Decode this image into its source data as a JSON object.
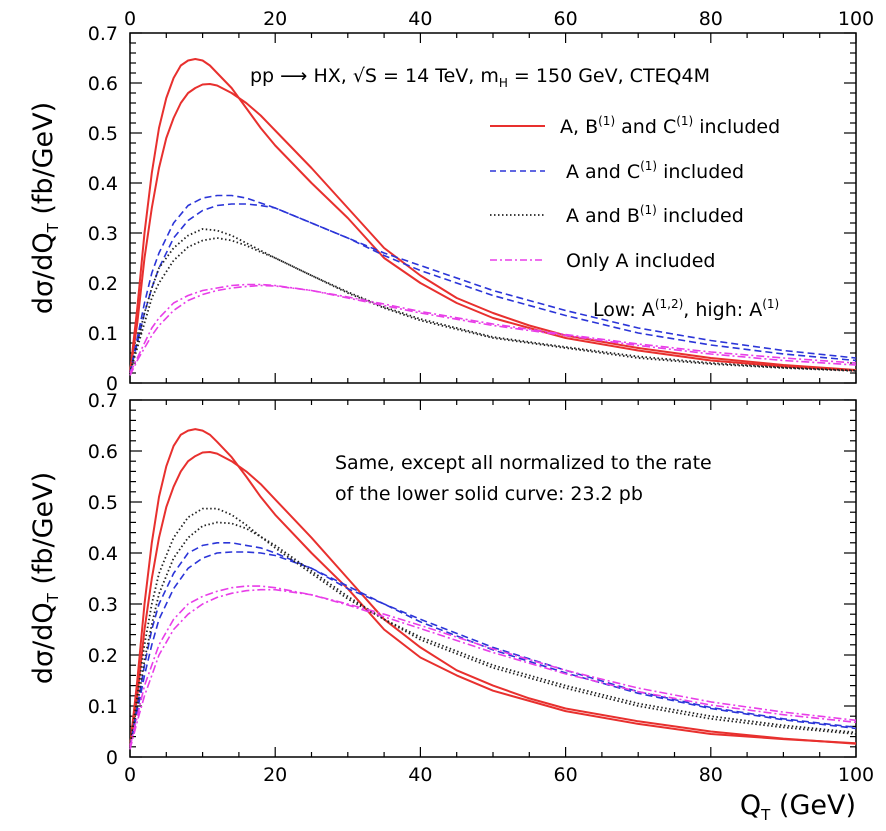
{
  "chart_data": [
    {
      "type": "line",
      "xlim": [
        0,
        100
      ],
      "ylim": [
        0,
        0.7
      ],
      "x_ticks": [
        "0",
        "20",
        "40",
        "60",
        "80",
        "100"
      ],
      "y_ticks": [
        "0",
        "0.1",
        "0.2",
        "0.3",
        "0.4",
        "0.5",
        "0.6",
        "0.7"
      ],
      "ylabel": "dσ/dQ_T (fb/GeV)",
      "title": "pp → HX, √S = 14 TeV, m_H = 150 GeV, CTEQ4M",
      "note": "Low: A^(1,2), high: A^(1)",
      "legend": [
        {
          "text": "A, B(1) and C(1) included",
          "style": "solid",
          "color": "#e8302e"
        },
        {
          "text": "A and C(1) included",
          "style": "dashed",
          "color": "#2b35d8"
        },
        {
          "text": "A and B(1) included",
          "style": "dotted",
          "color": "#222222"
        },
        {
          "text": "Only A included",
          "style": "dashdot",
          "color": "#e83ee8"
        }
      ],
      "series": [
        {
          "name": "A, B(1) and C(1) included (high)",
          "style": "solid",
          "color": "#e8302e",
          "x": [
            0,
            1,
            2,
            3,
            4,
            5,
            6,
            7,
            8,
            9,
            10,
            11,
            12,
            14,
            16,
            18,
            20,
            25,
            30,
            35,
            40,
            45,
            50,
            55,
            60,
            70,
            80,
            90,
            100
          ],
          "y": [
            0.02,
            0.15,
            0.3,
            0.42,
            0.51,
            0.57,
            0.61,
            0.635,
            0.645,
            0.648,
            0.645,
            0.635,
            0.62,
            0.59,
            0.55,
            0.51,
            0.475,
            0.4,
            0.33,
            0.25,
            0.2,
            0.16,
            0.13,
            0.11,
            0.09,
            0.065,
            0.045,
            0.033,
            0.025
          ]
        },
        {
          "name": "A, B(1) and C(1) included (low)",
          "style": "solid",
          "color": "#e8302e",
          "x": [
            0,
            1,
            2,
            3,
            4,
            5,
            6,
            7,
            8,
            9,
            10,
            11,
            12,
            14,
            16,
            18,
            20,
            25,
            30,
            35,
            40,
            45,
            50,
            55,
            60,
            70,
            80,
            90,
            100
          ],
          "y": [
            0.02,
            0.12,
            0.25,
            0.35,
            0.43,
            0.49,
            0.53,
            0.56,
            0.58,
            0.59,
            0.597,
            0.598,
            0.595,
            0.58,
            0.56,
            0.535,
            0.505,
            0.43,
            0.35,
            0.27,
            0.215,
            0.17,
            0.14,
            0.115,
            0.095,
            0.07,
            0.05,
            0.036,
            0.026
          ]
        },
        {
          "name": "A and C(1) included (high)",
          "style": "dashed",
          "color": "#2b35d8",
          "x": [
            0,
            1,
            2,
            3,
            4,
            6,
            8,
            10,
            12,
            14,
            16,
            18,
            20,
            25,
            30,
            35,
            40,
            50,
            60,
            70,
            80,
            90,
            100
          ],
          "y": [
            0.02,
            0.09,
            0.16,
            0.22,
            0.26,
            0.32,
            0.355,
            0.37,
            0.375,
            0.375,
            0.37,
            0.36,
            0.35,
            0.32,
            0.29,
            0.26,
            0.235,
            0.185,
            0.145,
            0.11,
            0.085,
            0.065,
            0.05
          ]
        },
        {
          "name": "A and C(1) included (low)",
          "style": "dashed",
          "color": "#2b35d8",
          "x": [
            0,
            1,
            2,
            3,
            4,
            6,
            8,
            10,
            12,
            14,
            16,
            18,
            20,
            25,
            30,
            35,
            40,
            50,
            60,
            70,
            80,
            90,
            100
          ],
          "y": [
            0.02,
            0.08,
            0.14,
            0.19,
            0.23,
            0.29,
            0.325,
            0.345,
            0.355,
            0.358,
            0.358,
            0.355,
            0.35,
            0.32,
            0.29,
            0.255,
            0.225,
            0.175,
            0.135,
            0.1,
            0.076,
            0.058,
            0.045
          ]
        },
        {
          "name": "A and B(1) included (high)",
          "style": "dotted",
          "color": "#222222",
          "x": [
            0,
            1,
            2,
            3,
            4,
            6,
            8,
            10,
            12,
            14,
            16,
            18,
            20,
            25,
            30,
            35,
            40,
            50,
            60,
            70,
            80,
            90,
            100
          ],
          "y": [
            0.02,
            0.08,
            0.14,
            0.19,
            0.23,
            0.27,
            0.295,
            0.308,
            0.305,
            0.295,
            0.28,
            0.265,
            0.25,
            0.215,
            0.18,
            0.15,
            0.125,
            0.09,
            0.07,
            0.05,
            0.038,
            0.03,
            0.024
          ]
        },
        {
          "name": "A and B(1) included (low)",
          "style": "dotted",
          "color": "#222222",
          "x": [
            0,
            1,
            2,
            3,
            4,
            6,
            8,
            10,
            12,
            14,
            16,
            18,
            20,
            25,
            30,
            35,
            40,
            50,
            60,
            70,
            80,
            90,
            100
          ],
          "y": [
            0.02,
            0.07,
            0.12,
            0.17,
            0.2,
            0.245,
            0.272,
            0.285,
            0.29,
            0.285,
            0.275,
            0.262,
            0.25,
            0.215,
            0.182,
            0.152,
            0.128,
            0.092,
            0.072,
            0.053,
            0.04,
            0.031,
            0.025
          ]
        },
        {
          "name": "Only A included (high)",
          "style": "dashdot",
          "color": "#e83ee8",
          "x": [
            0,
            1,
            2,
            3,
            4,
            6,
            8,
            10,
            12,
            14,
            16,
            18,
            20,
            25,
            30,
            35,
            40,
            50,
            60,
            70,
            80,
            90,
            100
          ],
          "y": [
            0.02,
            0.05,
            0.08,
            0.11,
            0.13,
            0.16,
            0.175,
            0.185,
            0.19,
            0.195,
            0.197,
            0.197,
            0.195,
            0.185,
            0.17,
            0.155,
            0.14,
            0.115,
            0.095,
            0.075,
            0.058,
            0.045,
            0.036
          ]
        },
        {
          "name": "Only A included (low)",
          "style": "dashdot",
          "color": "#e83ee8",
          "x": [
            0,
            1,
            2,
            3,
            4,
            6,
            8,
            10,
            12,
            14,
            16,
            18,
            20,
            25,
            30,
            35,
            40,
            50,
            60,
            70,
            80,
            90,
            100
          ],
          "y": [
            0.015,
            0.045,
            0.07,
            0.095,
            0.115,
            0.145,
            0.165,
            0.177,
            0.185,
            0.19,
            0.193,
            0.195,
            0.194,
            0.185,
            0.172,
            0.158,
            0.143,
            0.118,
            0.097,
            0.078,
            0.062,
            0.05,
            0.04
          ]
        }
      ]
    },
    {
      "type": "line",
      "xlim": [
        0,
        100
      ],
      "ylim": [
        0,
        0.7
      ],
      "x_ticks": [
        "0",
        "20",
        "40",
        "60",
        "80",
        "100"
      ],
      "y_ticks": [
        "0",
        "0.1",
        "0.2",
        "0.3",
        "0.4",
        "0.5",
        "0.6",
        "0.7"
      ],
      "ylabel": "dσ/dQ_T (fb/GeV)",
      "xlabel": "Q_T (GeV)",
      "note_lines": [
        "Same, except all normalized to the rate",
        "of the lower solid curve: 23.2 pb"
      ],
      "series": [
        {
          "name": "A, B(1) and C(1) included (high)",
          "style": "solid",
          "color": "#e8302e",
          "x": [
            0,
            1,
            2,
            3,
            4,
            5,
            6,
            7,
            8,
            9,
            10,
            11,
            12,
            14,
            16,
            18,
            20,
            25,
            30,
            35,
            40,
            45,
            50,
            55,
            60,
            70,
            80,
            90,
            100
          ],
          "y": [
            0.02,
            0.15,
            0.3,
            0.42,
            0.51,
            0.57,
            0.61,
            0.632,
            0.64,
            0.643,
            0.64,
            0.632,
            0.618,
            0.588,
            0.55,
            0.51,
            0.475,
            0.4,
            0.33,
            0.25,
            0.195,
            0.16,
            0.13,
            0.11,
            0.09,
            0.065,
            0.045,
            0.035,
            0.027
          ]
        },
        {
          "name": "A, B(1) and C(1) included (low)",
          "style": "solid",
          "color": "#e8302e",
          "x": [
            0,
            1,
            2,
            3,
            4,
            5,
            6,
            7,
            8,
            9,
            10,
            11,
            12,
            14,
            16,
            18,
            20,
            25,
            30,
            35,
            40,
            45,
            50,
            55,
            60,
            70,
            80,
            90,
            100
          ],
          "y": [
            0.02,
            0.12,
            0.25,
            0.35,
            0.43,
            0.49,
            0.53,
            0.56,
            0.58,
            0.59,
            0.597,
            0.598,
            0.595,
            0.58,
            0.56,
            0.535,
            0.505,
            0.43,
            0.35,
            0.27,
            0.215,
            0.17,
            0.14,
            0.115,
            0.095,
            0.07,
            0.05,
            0.036,
            0.026
          ]
        },
        {
          "name": "A and C(1) included (high)",
          "style": "dashed",
          "color": "#2b35d8",
          "x": [
            0,
            1,
            2,
            3,
            4,
            6,
            8,
            10,
            12,
            14,
            16,
            18,
            20,
            25,
            30,
            35,
            40,
            50,
            60,
            70,
            80,
            90,
            100
          ],
          "y": [
            0.02,
            0.1,
            0.18,
            0.25,
            0.3,
            0.36,
            0.4,
            0.415,
            0.42,
            0.42,
            0.415,
            0.41,
            0.4,
            0.37,
            0.33,
            0.3,
            0.265,
            0.21,
            0.165,
            0.125,
            0.095,
            0.073,
            0.056
          ]
        },
        {
          "name": "A and C(1) included (low)",
          "style": "dashed",
          "color": "#2b35d8",
          "x": [
            0,
            1,
            2,
            3,
            4,
            6,
            8,
            10,
            12,
            14,
            16,
            18,
            20,
            25,
            30,
            35,
            40,
            50,
            60,
            70,
            80,
            90,
            100
          ],
          "y": [
            0.02,
            0.09,
            0.16,
            0.22,
            0.27,
            0.33,
            0.37,
            0.39,
            0.4,
            0.402,
            0.402,
            0.4,
            0.395,
            0.37,
            0.335,
            0.3,
            0.27,
            0.215,
            0.17,
            0.128,
            0.097,
            0.075,
            0.058
          ]
        },
        {
          "name": "A and B(1) included (high)",
          "style": "dotted",
          "color": "#222222",
          "x": [
            0,
            1,
            2,
            3,
            4,
            6,
            8,
            10,
            12,
            14,
            16,
            18,
            20,
            25,
            30,
            35,
            40,
            50,
            60,
            70,
            80,
            90,
            100
          ],
          "y": [
            0.02,
            0.12,
            0.22,
            0.3,
            0.36,
            0.43,
            0.47,
            0.487,
            0.487,
            0.475,
            0.455,
            0.432,
            0.41,
            0.36,
            0.31,
            0.27,
            0.23,
            0.175,
            0.135,
            0.1,
            0.075,
            0.058,
            0.045
          ]
        },
        {
          "name": "A and B(1) included (low)",
          "style": "dotted",
          "color": "#222222",
          "x": [
            0,
            1,
            2,
            3,
            4,
            6,
            8,
            10,
            12,
            14,
            16,
            18,
            20,
            25,
            30,
            35,
            40,
            50,
            60,
            70,
            80,
            90,
            100
          ],
          "y": [
            0.02,
            0.1,
            0.19,
            0.26,
            0.32,
            0.39,
            0.43,
            0.453,
            0.46,
            0.458,
            0.448,
            0.432,
            0.415,
            0.365,
            0.315,
            0.27,
            0.235,
            0.18,
            0.14,
            0.105,
            0.08,
            0.062,
            0.048
          ]
        },
        {
          "name": "Only A included (high)",
          "style": "dashdot",
          "color": "#e83ee8",
          "x": [
            0,
            1,
            2,
            3,
            4,
            6,
            8,
            10,
            12,
            14,
            16,
            18,
            20,
            25,
            30,
            35,
            40,
            50,
            60,
            70,
            80,
            90,
            100
          ],
          "y": [
            0.02,
            0.08,
            0.14,
            0.18,
            0.22,
            0.27,
            0.3,
            0.315,
            0.325,
            0.332,
            0.335,
            0.335,
            0.332,
            0.318,
            0.298,
            0.275,
            0.252,
            0.205,
            0.163,
            0.128,
            0.102,
            0.083,
            0.068
          ]
        },
        {
          "name": "Only A included (low)",
          "style": "dashdot",
          "color": "#e83ee8",
          "x": [
            0,
            1,
            2,
            3,
            4,
            6,
            8,
            10,
            12,
            14,
            16,
            18,
            20,
            25,
            30,
            35,
            40,
            50,
            60,
            70,
            80,
            90,
            100
          ],
          "y": [
            0.015,
            0.07,
            0.12,
            0.16,
            0.2,
            0.25,
            0.28,
            0.3,
            0.313,
            0.321,
            0.326,
            0.328,
            0.328,
            0.318,
            0.3,
            0.28,
            0.258,
            0.212,
            0.17,
            0.135,
            0.108,
            0.088,
            0.072
          ]
        }
      ]
    }
  ]
}
